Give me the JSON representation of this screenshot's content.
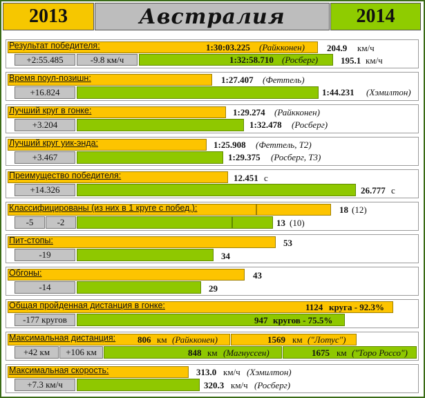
{
  "header": {
    "year_left": "2013",
    "title": "Австралия",
    "year_right": "2014"
  },
  "colors": {
    "y2013": "#fdc400",
    "y2014": "#8fc800",
    "diff": "#c4c4c4",
    "frame": "#3a6b16"
  },
  "rows": {
    "winner": {
      "label": "Результат победителя:",
      "y2013_time": "1:30:03.225",
      "y2013_driver": "(Райкконен)",
      "y2013_speed": "204.9",
      "y2013_speed_unit": "км/ч",
      "diff_time": "+2:55.485",
      "diff_speed": "-9.8 км/ч",
      "y2014_time": "1:32:58.710",
      "y2014_driver": "(Росберг)",
      "y2014_speed": "195.1",
      "y2014_speed_unit": "км/ч"
    },
    "pole": {
      "label": "Время поул-позишн:",
      "y2013_time": "1:27.407",
      "y2013_driver": "(Феттель)",
      "diff": "+16.824",
      "y2014_time": "1:44.231",
      "y2014_driver": "(Хэмилтон)"
    },
    "race_lap": {
      "label": "Лучший круг в гонке:",
      "y2013_time": "1:29.274",
      "y2013_driver": "(Райкконен)",
      "diff": "+3.204",
      "y2014_time": "1:32.478",
      "y2014_driver": "(Росберг)"
    },
    "weekend_lap": {
      "label": "Лучший круг уик-энда:",
      "y2013_time": "1:25.908",
      "y2013_driver": "(Феттель, Т2)",
      "diff": "+3.467",
      "y2014_time": "1:29.375",
      "y2014_driver": "(Росберг, Т3)"
    },
    "margin": {
      "label": "Преимущество победителя:",
      "y2013_value": "12.451",
      "y2013_unit": "с",
      "diff": "+14.326",
      "y2014_value": "26.777",
      "y2014_unit": "с"
    },
    "classified": {
      "label": "Классифицированы (из них в 1 круге с побед.):",
      "y2013_value": "18",
      "y2013_sub": "(12)",
      "diff_a": "-5",
      "diff_b": "-2",
      "y2014_value": "13",
      "y2014_sub": "(10)"
    },
    "pitstops": {
      "label": "Пит-стопы:",
      "y2013_value": "53",
      "diff": "-19",
      "y2014_value": "34"
    },
    "overtakes": {
      "label": "Обгоны:",
      "y2013_value": "43",
      "diff": "-14",
      "y2014_value": "29"
    },
    "distance": {
      "label": "Общая пройденная дистанция в гонке:",
      "y2013_value": "1124",
      "y2013_text": "круга - 92.3%",
      "diff": "-177 кругов",
      "y2014_value": "947",
      "y2014_text": "кругов - 75.5%"
    },
    "max_distance": {
      "label": "Максимальная дистанция:",
      "y2013_a_value": "806",
      "y2013_a_unit": "км",
      "y2013_a_name": "(Райкконен)",
      "y2013_b_value": "1569",
      "y2013_b_unit": "км",
      "y2013_b_name": "(\"Лотус\")",
      "diff_a": "+42 км",
      "diff_b": "+106 км",
      "y2014_a_value": "848",
      "y2014_a_unit": "км",
      "y2014_a_name": "(Магнуссен)",
      "y2014_b_value": "1675",
      "y2014_b_unit": "км",
      "y2014_b_name": "(\"Торо Россо\")"
    },
    "max_speed": {
      "label": "Максимальная скорость:",
      "y2013_value": "313.0",
      "y2013_unit": "км/ч",
      "y2013_driver": "(Хэмилтон)",
      "diff": "+7.3 км/ч",
      "y2014_value": "320.3",
      "y2014_unit": "км/ч",
      "y2014_driver": "(Росберг)"
    }
  }
}
